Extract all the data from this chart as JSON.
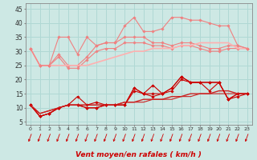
{
  "xlabel": "Vent moyen/en rafales ( km/h )",
  "background_color": "#cde8e4",
  "grid_color": "#b0d8d4",
  "x_values": [
    0,
    1,
    2,
    3,
    4,
    5,
    6,
    7,
    8,
    9,
    10,
    11,
    12,
    13,
    14,
    15,
    16,
    17,
    18,
    19,
    20,
    21,
    22,
    23
  ],
  "ylim": [
    4,
    47
  ],
  "yticks": [
    5,
    10,
    15,
    20,
    25,
    30,
    35,
    40,
    45
  ],
  "series_light": [
    {
      "color": "#f08080",
      "linewidth": 0.8,
      "marker": "D",
      "markersize": 1.8,
      "values": [
        31,
        25,
        25,
        29,
        25,
        25,
        28,
        32,
        33,
        33,
        35,
        35,
        35,
        33,
        33,
        32,
        33,
        33,
        32,
        31,
        31,
        32,
        32,
        31
      ]
    },
    {
      "color": "#f08080",
      "linewidth": 0.8,
      "marker": "D",
      "markersize": 1.8,
      "values": [
        31,
        25,
        25,
        28,
        24,
        24,
        27,
        30,
        31,
        31,
        33,
        33,
        33,
        32,
        32,
        31,
        32,
        32,
        31,
        30,
        30,
        31,
        31,
        31
      ]
    },
    {
      "color": "#ffb0b0",
      "linewidth": 1.2,
      "marker": null,
      "markersize": 0,
      "values": [
        31,
        25,
        25,
        25,
        25,
        25,
        25,
        26,
        27,
        28,
        29,
        30,
        30,
        31,
        31,
        31,
        32,
        32,
        33,
        33,
        33,
        33,
        31,
        31
      ]
    },
    {
      "color": "#f08080",
      "linewidth": 0.8,
      "marker": "D",
      "markersize": 1.8,
      "values": [
        31,
        25,
        25,
        35,
        35,
        29,
        35,
        32,
        33,
        33,
        39,
        42,
        37,
        37,
        38,
        42,
        42,
        41,
        41,
        40,
        39,
        39,
        32,
        31
      ]
    }
  ],
  "series_dark": [
    {
      "color": "#cc0000",
      "linewidth": 0.8,
      "marker": "D",
      "markersize": 1.8,
      "values": [
        11,
        7,
        8,
        10,
        11,
        11,
        10,
        10,
        11,
        11,
        11,
        17,
        15,
        15,
        15,
        17,
        21,
        19,
        19,
        19,
        19,
        13,
        15,
        15
      ]
    },
    {
      "color": "#cc0000",
      "linewidth": 0.8,
      "marker": "D",
      "markersize": 1.8,
      "values": [
        11,
        7,
        8,
        10,
        11,
        11,
        10,
        10,
        11,
        11,
        11,
        16,
        15,
        14,
        15,
        16,
        20,
        19,
        19,
        19,
        19,
        13,
        14,
        15
      ]
    },
    {
      "color": "#cc2222",
      "linewidth": 1.0,
      "marker": null,
      "markersize": 0,
      "values": [
        11,
        8,
        9,
        10,
        11,
        11,
        11,
        11,
        11,
        11,
        12,
        12,
        13,
        13,
        13,
        14,
        14,
        15,
        15,
        15,
        16,
        16,
        15,
        15
      ]
    },
    {
      "color": "#cc0000",
      "linewidth": 0.8,
      "marker": "D",
      "markersize": 1.8,
      "values": [
        11,
        7,
        8,
        10,
        11,
        14,
        11,
        12,
        11,
        11,
        11,
        17,
        15,
        18,
        15,
        17,
        21,
        19,
        19,
        16,
        19,
        13,
        15,
        15
      ]
    },
    {
      "color": "#cc2222",
      "linewidth": 0.8,
      "marker": null,
      "markersize": 0,
      "values": [
        11,
        8,
        9,
        10,
        11,
        11,
        11,
        11,
        11,
        11,
        12,
        12,
        12,
        13,
        13,
        13,
        14,
        14,
        15,
        15,
        15,
        15,
        15,
        15
      ]
    }
  ]
}
